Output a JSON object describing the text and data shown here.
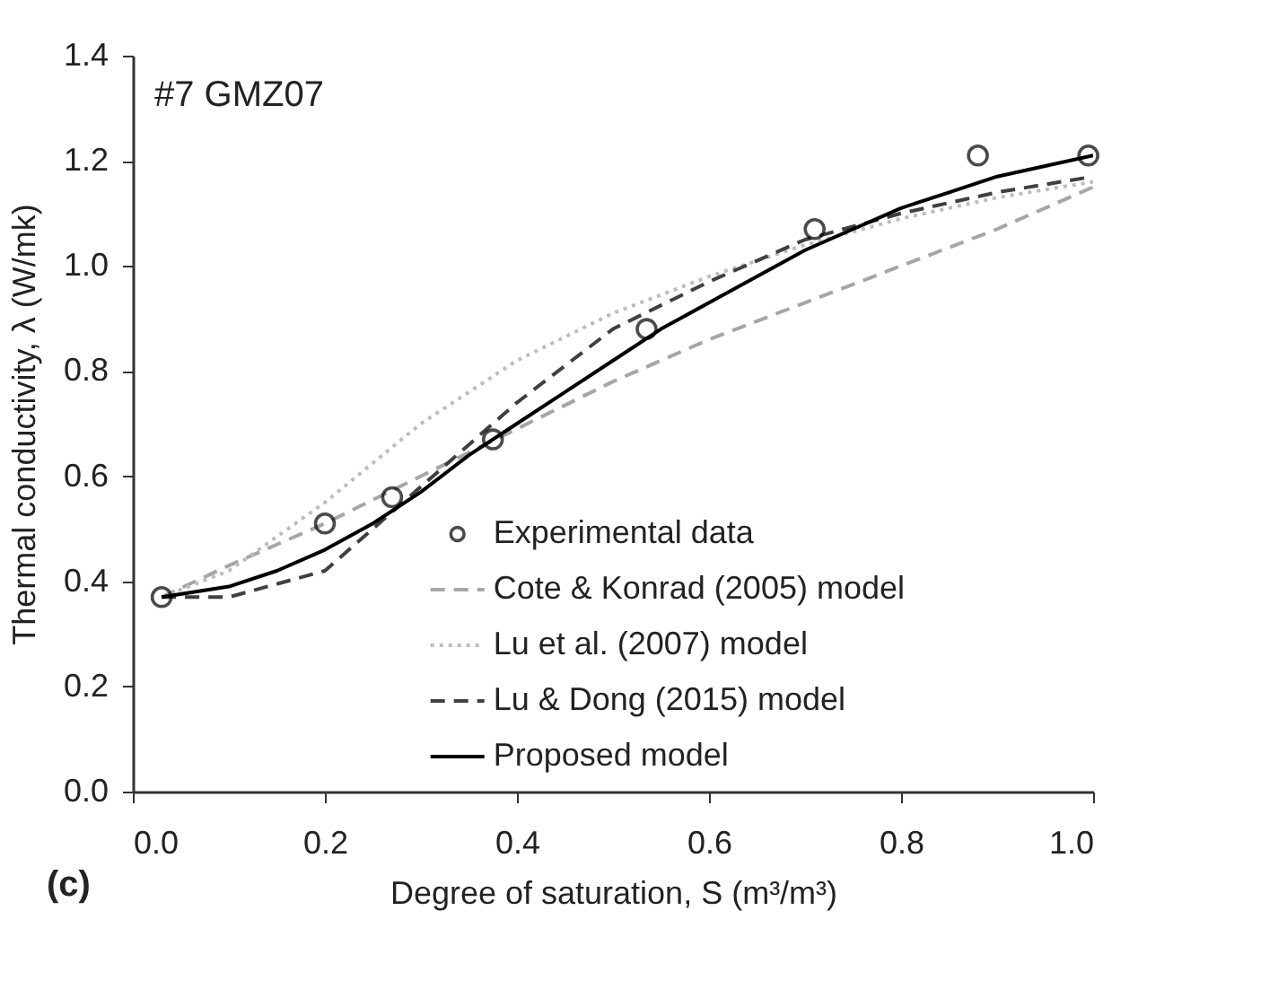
{
  "chart_data": {
    "type": "line",
    "xlabel": "Degree of saturation, S (m³/m³)",
    "ylabel": "Thermal conductivity, λ (W/mk)",
    "annotations": [
      "#7 GMZ07",
      "(c)"
    ],
    "xlim": [
      0,
      1
    ],
    "xticks": [
      {
        "value": 0,
        "label": "0.0"
      },
      {
        "value": 0.2,
        "label": "0.2"
      },
      {
        "value": 0.4,
        "label": "0.4"
      },
      {
        "value": 0.6,
        "label": "0.6"
      },
      {
        "value": 0.8,
        "label": "0.8"
      },
      {
        "value": 1,
        "label": "1.0"
      }
    ],
    "ylim": [
      0,
      1.4
    ],
    "yticks": [
      {
        "value": 0,
        "label": "0.0"
      },
      {
        "value": 0.2,
        "label": "0.2"
      },
      {
        "value": 0.4,
        "label": "0.4"
      },
      {
        "value": 0.6,
        "label": "0.6"
      },
      {
        "value": 0.8,
        "label": "0.8"
      },
      {
        "value": 1,
        "label": "1.0"
      },
      {
        "value": 1.2,
        "label": "1.2"
      },
      {
        "value": 1.4,
        "label": "1.4"
      }
    ],
    "legend": "bottom right",
    "grid": false,
    "series": [
      {
        "name": "Experimental data",
        "type": "scatter",
        "marker": "circle",
        "color": "#000000",
        "x": [
          0.03,
          0.2,
          0.27,
          0.375,
          0.535,
          0.71,
          0.88,
          0.995
        ],
        "values": [
          0.37,
          0.51,
          0.56,
          0.67,
          0.88,
          1.07,
          1.21,
          1.21
        ]
      },
      {
        "name": "Cote & Konrad (2005) model",
        "type": "line",
        "line_style": "dashed",
        "color": "#a6a6a6",
        "x": [
          0.03,
          0.1,
          0.2,
          0.3,
          0.4,
          0.5,
          0.6,
          0.7,
          0.8,
          0.9,
          1.0
        ],
        "values": [
          0.37,
          0.43,
          0.51,
          0.6,
          0.69,
          0.78,
          0.86,
          0.93,
          1.0,
          1.07,
          1.15
        ]
      },
      {
        "name": "Lu et al. (2007) model",
        "type": "line",
        "line_style": "dotted",
        "color": "#bdbdbd",
        "x": [
          0.03,
          0.1,
          0.2,
          0.3,
          0.4,
          0.5,
          0.6,
          0.7,
          0.8,
          0.9,
          1.0
        ],
        "values": [
          0.37,
          0.42,
          0.55,
          0.7,
          0.82,
          0.91,
          0.98,
          1.04,
          1.09,
          1.13,
          1.16
        ]
      },
      {
        "name": "Lu & Dong (2015) model",
        "type": "line",
        "line_style": "dashed",
        "color": "#404040",
        "x": [
          0.03,
          0.1,
          0.2,
          0.3,
          0.4,
          0.5,
          0.6,
          0.7,
          0.8,
          0.9,
          1.0
        ],
        "values": [
          0.37,
          0.37,
          0.42,
          0.58,
          0.74,
          0.88,
          0.97,
          1.05,
          1.1,
          1.14,
          1.17
        ]
      },
      {
        "name": "Proposed model",
        "type": "line",
        "line_style": "solid",
        "color": "#000000",
        "x": [
          0.03,
          0.1,
          0.15,
          0.2,
          0.25,
          0.3,
          0.35,
          0.4,
          0.45,
          0.5,
          0.55,
          0.6,
          0.65,
          0.7,
          0.75,
          0.8,
          0.85,
          0.9,
          0.95,
          1.0
        ],
        "values": [
          0.37,
          0.39,
          0.42,
          0.46,
          0.51,
          0.57,
          0.64,
          0.7,
          0.76,
          0.82,
          0.88,
          0.93,
          0.98,
          1.03,
          1.07,
          1.11,
          1.14,
          1.17,
          1.19,
          1.21
        ]
      }
    ]
  }
}
